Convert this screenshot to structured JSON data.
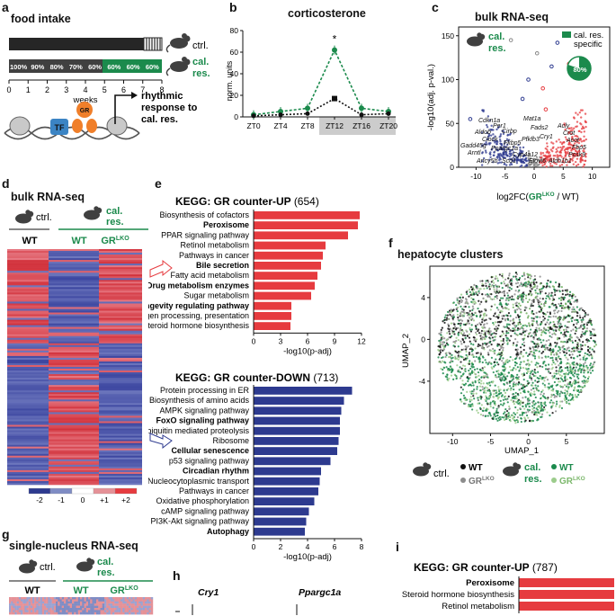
{
  "panels": {
    "a": {
      "label": "a",
      "title": "food intake",
      "ctrl": "ctrl.",
      "cal1": "cal.",
      "cal2": "res.",
      "pct": [
        "100%",
        "90%",
        "80%",
        "70%",
        "60%",
        "60%",
        "60%",
        "60%"
      ],
      "ticks": [
        "0",
        "1",
        "2",
        "3",
        "4",
        "5",
        "6",
        "7",
        "8"
      ],
      "xlabel": "weeks",
      "tf": "TF",
      "gr": "GR",
      "rhythm1": "rhythmic",
      "rhythm2": "response to",
      "rhythm3": "cal. res."
    },
    "b": {
      "label": "b",
      "title": "corticosterone",
      "ylabel": "norm. units",
      "yticks": [
        "0",
        "20",
        "40",
        "60",
        "80"
      ],
      "xticks": [
        "ZT0",
        "ZT4",
        "ZT8",
        "ZT12",
        "ZT16",
        "ZT20"
      ],
      "star": "*"
    },
    "c": {
      "label": "c",
      "title": "bulk RNA-seq",
      "cal1": "cal.",
      "cal2": "res.",
      "legend1": "cal. res.",
      "legend2": "specific",
      "pie": "80%",
      "ylabel": "-log10(adj. p-val.)",
      "xlabel_pre": "log2FC(",
      "xlabel_gr": "GR",
      "xlabel_sup": "LKO",
      "xlabel_post": " / WT)",
      "yticks": [
        "0",
        "50",
        "100",
        "150"
      ],
      "xticks": [
        "-10",
        "-5",
        "0",
        "5",
        "10"
      ],
      "genes": [
        "Cdkn1a",
        "Per1",
        "Mat1a",
        "Aldob",
        "Cirbp",
        "Gadd45g",
        "Clock",
        "Fkbp5",
        "Pfkfb3",
        "Arntl",
        "Acly",
        "Crot",
        "Acot",
        "Fbp5",
        "Pcsk9",
        "Cyp4a12",
        "Ppargc1a",
        "Ancy5b",
        "Scd1",
        "Elovl6",
        "Aldh1b1",
        "Cry1",
        "Fads2"
      ]
    },
    "d": {
      "label": "d",
      "title": "bulk RNA-seq",
      "ctrl": "ctrl.",
      "cal1": "cal.",
      "cal2": "res.",
      "wt1": "WT",
      "wt2": "WT",
      "gr": "GR",
      "sup": "LKO",
      "scale": [
        "-2",
        "-1",
        "0",
        "+1",
        "+2"
      ]
    },
    "e": {
      "label": "e",
      "up_title": "KEGG: GR counter-UP",
      "up_count": "(654)",
      "up_terms": [
        {
          "t": "Biosynthesis of cofactors",
          "b": false,
          "v": 11.8
        },
        {
          "t": "Peroxisome",
          "b": true,
          "v": 11.6
        },
        {
          "t": "PPAR signaling pathway",
          "b": false,
          "v": 10.5
        },
        {
          "t": "Retinol metabolism",
          "b": false,
          "v": 8.0
        },
        {
          "t": "Pathways in cancer",
          "b": false,
          "v": 7.7
        },
        {
          "t": "Bile secretion",
          "b": true,
          "v": 7.5
        },
        {
          "t": "Fatty acid metabolism",
          "b": false,
          "v": 7.1
        },
        {
          "t": "Drug metabolism enzymes",
          "b": true,
          "v": 6.8
        },
        {
          "t": "Sugar metabolism",
          "b": false,
          "v": 6.4
        },
        {
          "t": "Longevity regulating pathway",
          "b": true,
          "v": 4.2
        },
        {
          "t": "Antigen processing, presentation",
          "b": false,
          "v": 4.2
        },
        {
          "t": "Steroid hormone biosynthesis",
          "b": false,
          "v": 4.1
        }
      ],
      "up_xticks": [
        "0",
        "3",
        "6",
        "9",
        "12"
      ],
      "xlabel": "-log10(p-adj)",
      "down_title": "KEGG: GR counter-DOWN",
      "down_count": "(713)",
      "down_terms": [
        {
          "t": "Protein processing in ER",
          "b": false,
          "v": 7.3
        },
        {
          "t": "Biosynthesis of amino acids",
          "b": false,
          "v": 6.7
        },
        {
          "t": "AMPK signaling pathway",
          "b": false,
          "v": 6.5
        },
        {
          "t": "FoxO signaling pathway",
          "b": true,
          "v": 6.4
        },
        {
          "t": "Ubiquitin mediated proteolysis",
          "b": false,
          "v": 6.4
        },
        {
          "t": "Ribosome",
          "b": false,
          "v": 6.3
        },
        {
          "t": "Cellular senescence",
          "b": true,
          "v": 6.2
        },
        {
          "t": "p53 signaling pathway",
          "b": false,
          "v": 5.7
        },
        {
          "t": "Circadian rhythm",
          "b": true,
          "v": 5.0
        },
        {
          "t": "Nucleocytoplasmic transport",
          "b": false,
          "v": 4.9
        },
        {
          "t": "Pathways in cancer",
          "b": false,
          "v": 4.8
        },
        {
          "t": "Oxidative phosphorylation",
          "b": false,
          "v": 4.5
        },
        {
          "t": "cAMP signaling pathway",
          "b": false,
          "v": 4.1
        },
        {
          "t": "PI3K-Akt signaling pathway",
          "b": false,
          "v": 3.9
        },
        {
          "t": "Autophagy",
          "b": true,
          "v": 3.8
        }
      ],
      "down_xticks": [
        "0",
        "2",
        "4",
        "6",
        "8"
      ]
    },
    "f": {
      "label": "f",
      "title": "hepatocyte clusters",
      "ylabel": "UMAP_2",
      "xlabel": "UMAP_1",
      "yticks": [
        "4",
        "0",
        "-4"
      ],
      "xticks": [
        "-10",
        "-5",
        "0",
        "5"
      ],
      "ctrl": "ctrl.",
      "wt": "WT",
      "gr": "GR",
      "sup": "LKO",
      "cal1": "cal.",
      "cal2": "res."
    },
    "g": {
      "label": "g",
      "title": "single-nucleus RNA-seq",
      "ctrl": "ctrl.",
      "cal1": "cal.",
      "cal2": "res.",
      "wt1": "WT",
      "wt2": "WT",
      "gr": "GR",
      "sup": "LKO"
    },
    "h": {
      "label": "h",
      "gene1": "Cry1",
      "gene2": "Ppargc1a"
    },
    "i": {
      "label": "i",
      "title": "KEGG: GR counter-UP",
      "count": "(787)",
      "terms": [
        {
          "t": "Peroxisome",
          "b": true
        },
        {
          "t": "Steroid hormone biosynthesis",
          "b": false
        },
        {
          "t": "Retinol metabolism",
          "b": false
        }
      ]
    }
  },
  "corticosterone_data": {
    "type": "line",
    "x": [
      "ZT0",
      "ZT4",
      "ZT8",
      "ZT12",
      "ZT16",
      "ZT20"
    ],
    "series": [
      {
        "values": [
          2,
          5,
          8,
          62,
          8,
          5
        ]
      },
      {
        "values": [
          1,
          2,
          3,
          17,
          2,
          3
        ]
      }
    ],
    "ylim": [
      0,
      80
    ]
  },
  "colors": {
    "green": "#1b8a4c",
    "red": "#e63b3f",
    "blue": "#2d3a8f",
    "black": "#262626",
    "gray": "#8c8c8c"
  }
}
